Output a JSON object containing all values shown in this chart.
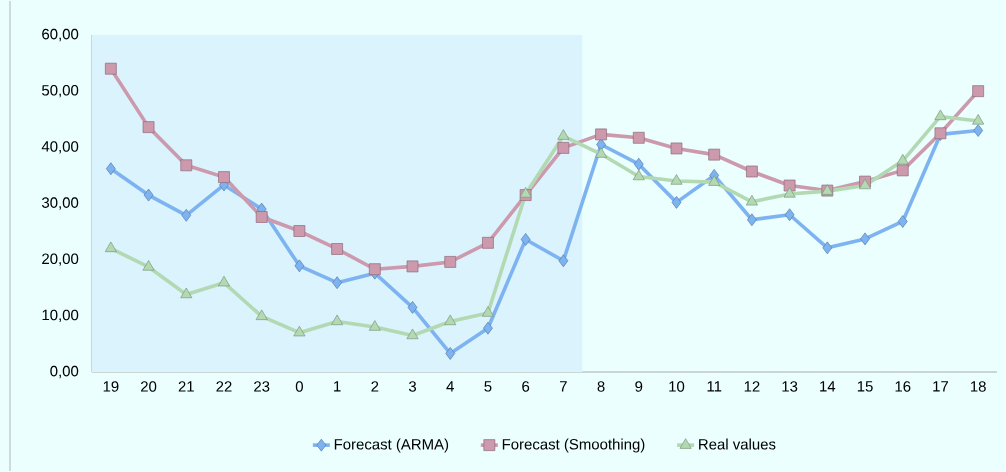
{
  "chart_data": {
    "type": "line",
    "categories": [
      "19",
      "20",
      "21",
      "22",
      "23",
      "0",
      "1",
      "2",
      "3",
      "4",
      "5",
      "6",
      "7",
      "8",
      "9",
      "10",
      "11",
      "12",
      "13",
      "14",
      "15",
      "16",
      "17",
      "18"
    ],
    "series": [
      {
        "name": "Forecast (ARMA)",
        "color": "#7eb3f2",
        "marker": "diamond",
        "values": [
          36.2,
          31.5,
          27.9,
          33.3,
          29.0,
          18.9,
          15.9,
          17.6,
          11.5,
          3.3,
          7.8,
          23.6,
          19.8,
          40.5,
          37.0,
          30.2,
          35.0,
          27.1,
          28.0,
          22.1,
          23.7,
          26.8,
          42.3,
          43.0
        ]
      },
      {
        "name": "Forecast (Smoothing)",
        "color": "#cc99ad",
        "marker": "square",
        "values": [
          54.0,
          43.6,
          36.8,
          34.7,
          27.6,
          25.1,
          21.9,
          18.3,
          18.8,
          19.6,
          23.0,
          31.5,
          39.9,
          42.3,
          41.7,
          39.8,
          38.7,
          35.7,
          33.2,
          32.3,
          33.9,
          35.9,
          42.5,
          50.0
        ]
      },
      {
        "name": "Real values",
        "color": "#b3d9b3",
        "marker": "triangle",
        "values": [
          22.0,
          18.7,
          13.8,
          15.9,
          9.9,
          7.0,
          9.0,
          8.0,
          6.5,
          9.0,
          10.5,
          31.7,
          42.0,
          38.8,
          34.8,
          34.0,
          33.8,
          30.3,
          31.7,
          32.2,
          33.2,
          37.6,
          45.5,
          44.7
        ]
      }
    ],
    "ylim": [
      0,
      60
    ],
    "yticks": [
      {
        "value": 0,
        "label": "0,00"
      },
      {
        "value": 10,
        "label": "10,00"
      },
      {
        "value": 20,
        "label": "20,00"
      },
      {
        "value": 30,
        "label": "30,00"
      },
      {
        "value": 40,
        "label": "40,00"
      },
      {
        "value": 50,
        "label": "50,00"
      },
      {
        "value": 60,
        "label": "60,00"
      }
    ],
    "bands": [
      {
        "axis": "x",
        "from": "19",
        "to": "7",
        "color": "#daf3fd"
      }
    ],
    "grid": false,
    "legend": "bottom",
    "line_style": "solid"
  }
}
